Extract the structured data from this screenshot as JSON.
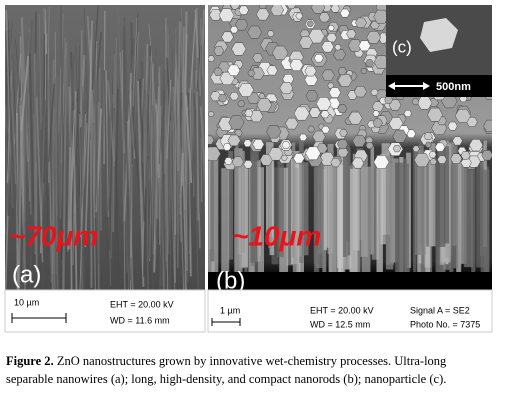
{
  "panel_a": {
    "length_label": "~70μm",
    "panel_label": "(a)",
    "scale_label": "10 µm",
    "eht": "EHT = 20.00 kV",
    "wd": "WD = 11.6 mm"
  },
  "panel_b": {
    "length_label": "~10μm",
    "panel_label": "(b)",
    "scale_label": "1 µm",
    "eht": "EHT = 20.00 kV",
    "wd": "WD = 12.5 mm",
    "signal": "Signal A = SE2",
    "photo": "Photo No. = 7375"
  },
  "panel_c": {
    "panel_label": "(c)",
    "scale_label": "500nm"
  },
  "caption": {
    "label": "Figure 2.",
    "lines": [
      "ZnO nanostructures grown by innovative wet-chemistry processes. Ultra-long",
      "separable nanowires (a); long, high-density, and compact nanorods (b); nanoparticle (c)."
    ]
  }
}
